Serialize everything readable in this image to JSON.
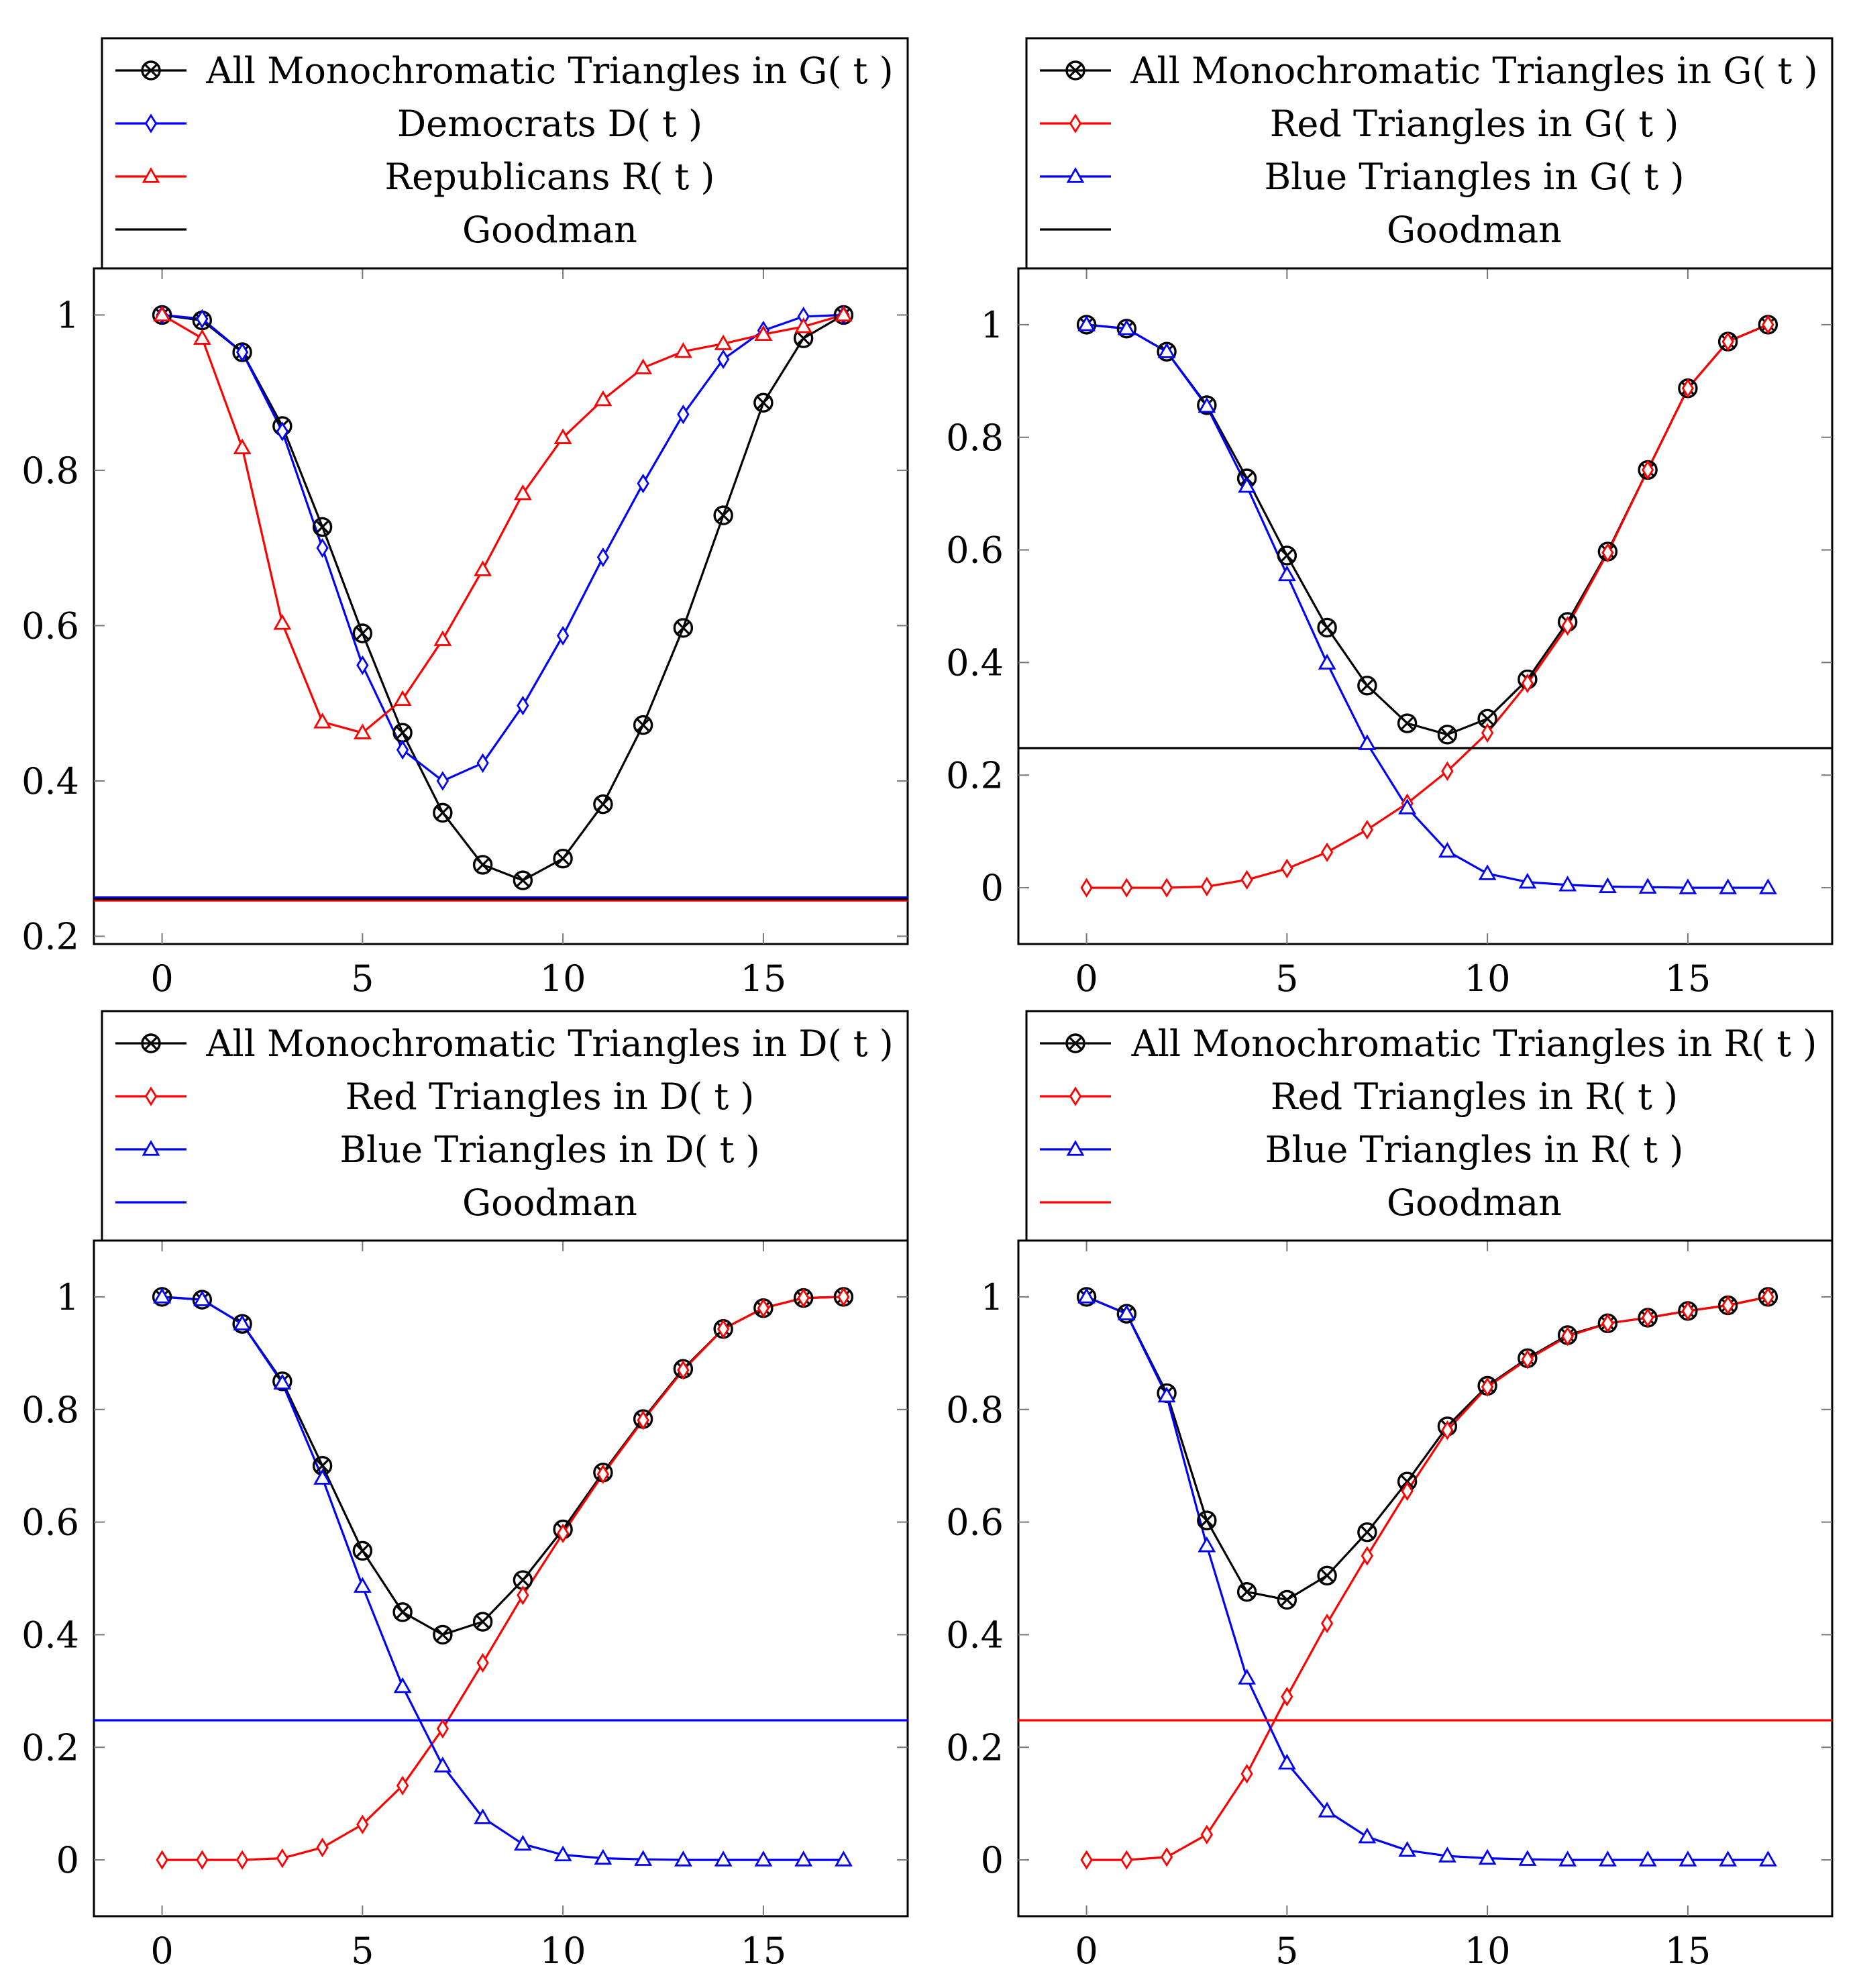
{
  "chart_data": [
    {
      "type": "line",
      "panel": "top-left",
      "xlabel": "",
      "ylabel": "",
      "xlim": [
        -1.7,
        18.6
      ],
      "ylim": [
        0.19,
        1.06
      ],
      "xticks": [
        0,
        5,
        10,
        15
      ],
      "yticks": [
        0.2,
        0.4,
        0.6,
        0.8,
        1
      ],
      "ytick_labels": [
        "0.2",
        "0.4",
        "0.6",
        "0.8",
        "1"
      ],
      "legend_position": "top",
      "x": [
        0,
        1,
        2,
        3,
        4,
        5,
        6,
        7,
        8,
        9,
        10,
        11,
        12,
        13,
        14,
        15,
        16,
        17
      ],
      "series": [
        {
          "name": "All Monochromatic Triangles in G( t )",
          "color": "#000000",
          "marker": "otimes",
          "values": [
            1.0,
            0.993,
            0.952,
            0.857,
            0.727,
            0.59,
            0.462,
            0.359,
            0.292,
            0.272,
            0.3,
            0.37,
            0.472,
            0.597,
            0.742,
            0.887,
            0.97,
            1.0
          ]
        },
        {
          "name": "Democrats D( t )",
          "color": "#0000ff",
          "marker": "diamond",
          "values": [
            1.0,
            0.995,
            0.952,
            0.85,
            0.7,
            0.549,
            0.44,
            0.4,
            0.423,
            0.497,
            0.587,
            0.688,
            0.783,
            0.872,
            0.943,
            0.98,
            0.998,
            1.0
          ]
        },
        {
          "name": "Republicans R( t )",
          "color": "#ff0000",
          "marker": "triangle",
          "values": [
            1.0,
            0.97,
            0.829,
            0.603,
            0.476,
            0.462,
            0.505,
            0.582,
            0.672,
            0.77,
            0.842,
            0.891,
            0.932,
            0.953,
            0.963,
            0.975,
            0.985,
            1.0
          ]
        },
        {
          "name": "Goodman",
          "color": "#000000",
          "marker": "none",
          "hline": 0.248
        }
      ],
      "extra_hlines": [
        {
          "value": 0.25,
          "color": "#0000ff"
        },
        {
          "value": 0.246,
          "color": "#ff0000"
        }
      ]
    },
    {
      "type": "line",
      "panel": "top-right",
      "xlabel": "",
      "ylabel": "",
      "xlim": [
        -1.7,
        18.6
      ],
      "ylim": [
        -0.1,
        1.1
      ],
      "xticks": [
        0,
        5,
        10,
        15
      ],
      "yticks": [
        0,
        0.2,
        0.4,
        0.6,
        0.8,
        1
      ],
      "ytick_labels": [
        "0",
        "0.2",
        "0.4",
        "0.6",
        "0.8",
        "1"
      ],
      "legend_position": "top",
      "x": [
        0,
        1,
        2,
        3,
        4,
        5,
        6,
        7,
        8,
        9,
        10,
        11,
        12,
        13,
        14,
        15,
        16,
        17
      ],
      "series": [
        {
          "name": "All Monochromatic Triangles in G( t )",
          "color": "#000000",
          "marker": "otimes",
          "values": [
            1.0,
            0.993,
            0.952,
            0.857,
            0.727,
            0.59,
            0.462,
            0.359,
            0.292,
            0.272,
            0.3,
            0.37,
            0.472,
            0.597,
            0.742,
            0.887,
            0.97,
            1.0
          ]
        },
        {
          "name": "Red Triangles in G( t )",
          "color": "#ff0000",
          "marker": "diamond",
          "values": [
            0.0,
            0.0,
            0.0,
            0.002,
            0.014,
            0.034,
            0.063,
            0.103,
            0.15,
            0.207,
            0.275,
            0.363,
            0.465,
            0.595,
            0.742,
            0.887,
            0.97,
            1.0
          ]
        },
        {
          "name": "Blue Triangles in G( t )",
          "color": "#0000ff",
          "marker": "triangle",
          "values": [
            1.0,
            0.993,
            0.952,
            0.855,
            0.713,
            0.556,
            0.399,
            0.256,
            0.142,
            0.065,
            0.025,
            0.01,
            0.005,
            0.002,
            0.001,
            0.0,
            0.0,
            0.0
          ]
        },
        {
          "name": "Goodman",
          "color": "#000000",
          "marker": "none",
          "hline": 0.248
        }
      ]
    },
    {
      "type": "line",
      "panel": "bottom-left",
      "xlabel": "",
      "ylabel": "",
      "xlim": [
        -1.7,
        18.6
      ],
      "ylim": [
        -0.1,
        1.1
      ],
      "xticks": [
        0,
        5,
        10,
        15
      ],
      "yticks": [
        0,
        0.2,
        0.4,
        0.6,
        0.8,
        1
      ],
      "ytick_labels": [
        "0",
        "0.2",
        "0.4",
        "0.6",
        "0.8",
        "1"
      ],
      "legend_position": "top",
      "x": [
        0,
        1,
        2,
        3,
        4,
        5,
        6,
        7,
        8,
        9,
        10,
        11,
        12,
        13,
        14,
        15,
        16,
        17
      ],
      "series": [
        {
          "name": "All Monochromatic Triangles in D( t )",
          "color": "#000000",
          "marker": "otimes",
          "values": [
            1.0,
            0.995,
            0.952,
            0.85,
            0.7,
            0.549,
            0.44,
            0.4,
            0.423,
            0.497,
            0.587,
            0.688,
            0.783,
            0.872,
            0.943,
            0.98,
            0.998,
            1.0
          ]
        },
        {
          "name": "Red Triangles in D( t )",
          "color": "#ff0000",
          "marker": "diamond",
          "values": [
            0.0,
            0.0,
            0.0,
            0.003,
            0.022,
            0.063,
            0.132,
            0.233,
            0.35,
            0.47,
            0.58,
            0.685,
            0.781,
            0.87,
            0.943,
            0.98,
            0.998,
            1.0
          ]
        },
        {
          "name": "Blue Triangles in D( t )",
          "color": "#0000ff",
          "marker": "triangle",
          "values": [
            1.0,
            0.995,
            0.952,
            0.847,
            0.678,
            0.486,
            0.308,
            0.167,
            0.075,
            0.028,
            0.009,
            0.003,
            0.001,
            0.0,
            0.0,
            0.0,
            0.0,
            0.0
          ]
        },
        {
          "name": "Goodman",
          "color": "#0000ff",
          "marker": "none",
          "hline": 0.248
        }
      ]
    },
    {
      "type": "line",
      "panel": "bottom-right",
      "xlabel": "",
      "ylabel": "",
      "xlim": [
        -1.7,
        18.6
      ],
      "ylim": [
        -0.1,
        1.1
      ],
      "xticks": [
        0,
        5,
        10,
        15
      ],
      "yticks": [
        0,
        0.2,
        0.4,
        0.6,
        0.8,
        1
      ],
      "ytick_labels": [
        "0",
        "0.2",
        "0.4",
        "0.6",
        "0.8",
        "1"
      ],
      "legend_position": "top",
      "x": [
        0,
        1,
        2,
        3,
        4,
        5,
        6,
        7,
        8,
        9,
        10,
        11,
        12,
        13,
        14,
        15,
        16,
        17
      ],
      "series": [
        {
          "name": "All Monochromatic Triangles in R( t )",
          "color": "#000000",
          "marker": "otimes",
          "values": [
            1.0,
            0.97,
            0.829,
            0.603,
            0.476,
            0.462,
            0.505,
            0.582,
            0.672,
            0.77,
            0.842,
            0.891,
            0.932,
            0.953,
            0.963,
            0.975,
            0.985,
            1.0
          ]
        },
        {
          "name": "Red Triangles in R( t )",
          "color": "#ff0000",
          "marker": "diamond",
          "values": [
            0.0,
            0.0,
            0.005,
            0.045,
            0.153,
            0.29,
            0.42,
            0.54,
            0.655,
            0.763,
            0.84,
            0.889,
            0.93,
            0.953,
            0.963,
            0.975,
            0.985,
            1.0
          ]
        },
        {
          "name": "Blue Triangles in R( t )",
          "color": "#0000ff",
          "marker": "triangle",
          "values": [
            1.0,
            0.97,
            0.824,
            0.558,
            0.323,
            0.172,
            0.087,
            0.041,
            0.017,
            0.007,
            0.003,
            0.001,
            0.0,
            0.0,
            0.0,
            0.0,
            0.0,
            0.0
          ]
        },
        {
          "name": "Goodman",
          "color": "#ff0000",
          "marker": "none",
          "hline": 0.248
        }
      ]
    }
  ]
}
